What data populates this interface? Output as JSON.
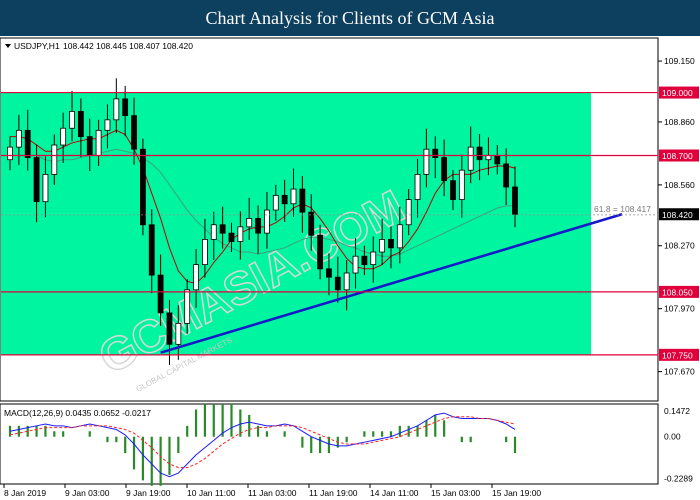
{
  "header": {
    "title": "Chart Analysis for Clients of GCM Asia"
  },
  "main_chart": {
    "symbol_label": "USDJPY,H1",
    "ohlc_label": "108.442 108.445 108.407 108.420",
    "y_ticks": [
      "109.150",
      "108.860",
      "108.560",
      "108.270",
      "107.970",
      "107.670"
    ],
    "y_tick_values": [
      109.15,
      108.86,
      108.56,
      108.27,
      107.97,
      107.67
    ],
    "price_range": [
      107.53,
      109.26
    ],
    "levels": [
      {
        "label": "109.000",
        "value": 109.0
      },
      {
        "label": "108.700",
        "value": 108.7
      },
      {
        "label": "108.050",
        "value": 108.05
      },
      {
        "label": "107.750",
        "value": 107.75
      }
    ],
    "current_price": {
      "label": "108.420",
      "value": 108.42
    },
    "fib_label": "61.8 = 108.417",
    "fib_value": 108.417,
    "zone": {
      "top": 109.0,
      "bottom": 107.75
    },
    "trendline": {
      "start": {
        "bar": 17,
        "price": 107.76
      },
      "end": {
        "bar": 62,
        "price": 108.42
      }
    },
    "watermark": "GCMASIA.COM",
    "watermark_sub": "GLOBAL CAPITAL MARKETS"
  },
  "macd": {
    "label": "MACD(12,26,9) 0.0435 0.0652 -0.0217",
    "y_ticks": [
      "0.1472",
      "0.00",
      "-0.2289"
    ],
    "y_tick_values": [
      0.1472,
      0.0,
      -0.2289
    ]
  },
  "x_ticks": [
    "8 Jan 2019",
    "9 Jan 03:00",
    "9 Jan 19:00",
    "10 Jan 11:00",
    "11 Jan 03:00",
    "11 Jan 19:00",
    "14 Jan 11:00",
    "15 Jan 03:00",
    "15 Jan 19:00"
  ],
  "colors": {
    "header_bg": "#0d3f5f",
    "zone": "#00f5a0",
    "level_line": "#e0003c",
    "trendline": "#1418c8",
    "candle": "#000000",
    "ma_fast": "#c00000",
    "ma_slow": "#40a080",
    "macd_line": "#1a1aff",
    "signal_line": "#ff2020",
    "hist": "#2a8a2a"
  },
  "chart_data": [
    {
      "type": "candlestick",
      "title": "USDJPY,H1",
      "ylim": [
        107.53,
        109.26
      ],
      "x_ticks": [
        "8 Jan 2019",
        "9 Jan 03:00",
        "9 Jan 19:00",
        "10 Jan 11:00",
        "11 Jan 03:00",
        "11 Jan 19:00",
        "14 Jan 11:00",
        "15 Jan 03:00",
        "15 Jan 19:00"
      ],
      "close": [
        108.74,
        108.82,
        108.69,
        108.48,
        108.61,
        108.75,
        108.83,
        108.91,
        108.79,
        108.7,
        108.82,
        108.87,
        108.97,
        108.89,
        108.73,
        108.37,
        108.13,
        107.95,
        107.8,
        107.9,
        108.06,
        108.18,
        108.3,
        108.37,
        108.33,
        108.29,
        108.36,
        108.4,
        108.33,
        108.44,
        108.51,
        108.47,
        108.54,
        108.43,
        108.32,
        108.16,
        108.12,
        108.06,
        108.14,
        108.22,
        108.18,
        108.24,
        108.3,
        108.26,
        108.37,
        108.49,
        108.61,
        108.73,
        108.69,
        108.58,
        108.49,
        108.63,
        108.74,
        108.68,
        108.7,
        108.66,
        108.55,
        108.42
      ],
      "ma_fast": [
        108.79,
        108.79,
        108.78,
        108.75,
        108.72,
        108.72,
        108.74,
        108.76,
        108.77,
        108.78,
        108.78,
        108.8,
        108.82,
        108.8,
        108.73,
        108.64,
        108.52,
        108.4,
        108.26,
        108.15,
        108.1,
        108.09,
        108.13,
        108.19,
        108.24,
        108.3,
        108.33,
        108.35,
        108.36,
        108.36,
        108.38,
        108.41,
        108.45,
        108.47,
        108.45,
        108.4,
        108.34,
        108.27,
        108.21,
        108.17,
        108.16,
        108.16,
        108.18,
        108.22,
        108.24,
        108.29,
        108.35,
        108.43,
        108.52,
        108.58,
        108.61,
        108.61,
        108.61,
        108.63,
        108.64,
        108.65,
        108.65,
        108.64
      ],
      "ma_slow": [
        108.7,
        108.7,
        108.7,
        108.7,
        108.68,
        108.67,
        108.68,
        108.68,
        108.69,
        108.7,
        108.71,
        108.72,
        108.73,
        108.72,
        108.71,
        108.69,
        108.66,
        108.62,
        108.56,
        108.5,
        108.44,
        108.39,
        108.35,
        108.31,
        108.28,
        108.26,
        108.24,
        108.24,
        108.23,
        108.24,
        108.25,
        108.26,
        108.28,
        108.3,
        108.31,
        108.31,
        108.3,
        108.29,
        108.27,
        108.26,
        108.24,
        108.23,
        108.22,
        108.22,
        108.23,
        108.25,
        108.27,
        108.29,
        108.31,
        108.33,
        108.35,
        108.37,
        108.39,
        108.41,
        108.43,
        108.45,
        108.46,
        108.46
      ]
    },
    {
      "type": "bar",
      "title": "MACD(12,26,9) 0.0435 0.0652 -0.0217",
      "ylim": [
        -0.2289,
        0.1472
      ],
      "macd": [
        0.03,
        0.04,
        0.05,
        0.06,
        0.07,
        0.06,
        0.06,
        0.05,
        0.06,
        0.07,
        0.06,
        0.05,
        0.04,
        0.01,
        -0.04,
        -0.1,
        -0.15,
        -0.2,
        -0.22,
        -0.2,
        -0.15,
        -0.1,
        -0.06,
        -0.02,
        0.02,
        0.05,
        0.07,
        0.08,
        0.07,
        0.06,
        0.06,
        0.07,
        0.06,
        0.03,
        0.0,
        -0.02,
        -0.04,
        -0.05,
        -0.05,
        -0.04,
        -0.03,
        -0.02,
        -0.01,
        0.0,
        0.02,
        0.04,
        0.06,
        0.09,
        0.12,
        0.13,
        0.11,
        0.1,
        0.1,
        0.1,
        0.1,
        0.09,
        0.07,
        0.04
      ],
      "signal": [
        0.01,
        0.02,
        0.03,
        0.04,
        0.05,
        0.05,
        0.05,
        0.05,
        0.06,
        0.06,
        0.06,
        0.06,
        0.05,
        0.04,
        0.02,
        -0.02,
        -0.06,
        -0.11,
        -0.15,
        -0.17,
        -0.17,
        -0.15,
        -0.12,
        -0.08,
        -0.04,
        -0.01,
        0.02,
        0.04,
        0.05,
        0.05,
        0.06,
        0.06,
        0.06,
        0.05,
        0.03,
        0.01,
        -0.01,
        -0.03,
        -0.04,
        -0.04,
        -0.04,
        -0.03,
        -0.02,
        -0.01,
        0.0,
        0.02,
        0.04,
        0.06,
        0.08,
        0.1,
        0.11,
        0.11,
        0.11,
        0.1,
        0.1,
        0.09,
        0.08,
        0.07
      ]
    }
  ]
}
